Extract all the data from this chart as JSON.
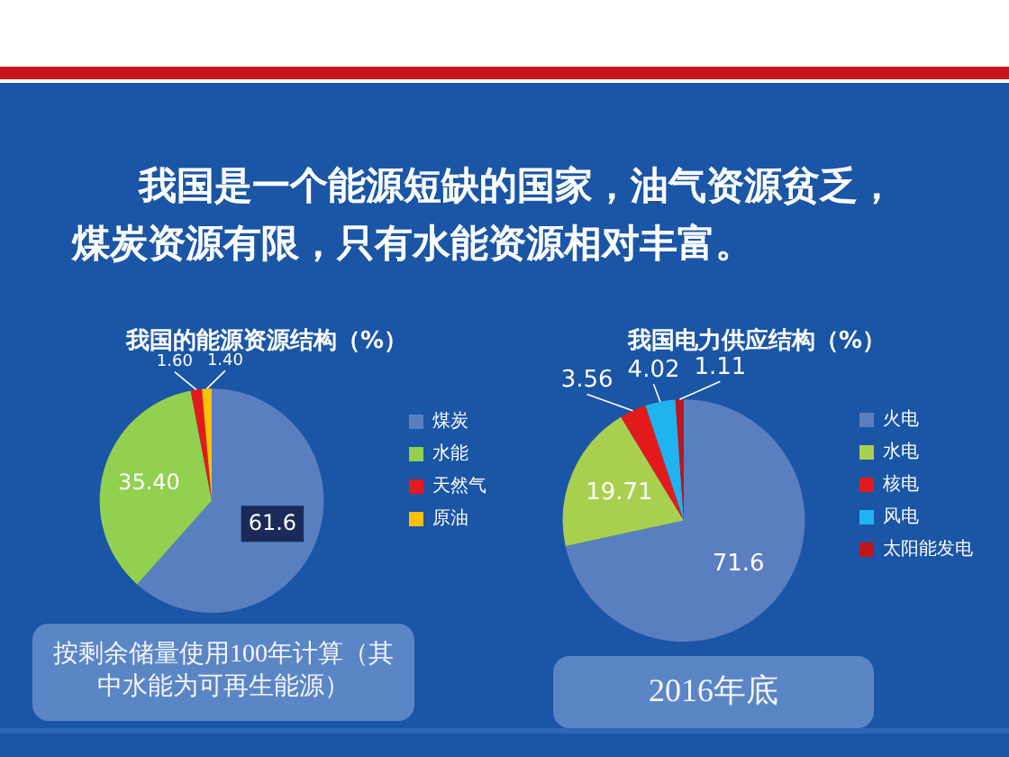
{
  "chart_data": [
    {
      "type": "pie",
      "title": "我国的能源资源结构（%）",
      "categories": [
        "煤炭",
        "水能",
        "天然气",
        "原油"
      ],
      "values": [
        61.6,
        35.4,
        1.6,
        1.4
      ],
      "value_labels": [
        "61.6",
        "35.40",
        "1.60",
        "1.40"
      ],
      "colors": [
        "#5a7fc0",
        "#92d050",
        "#e31a1c",
        "#ffc000"
      ],
      "legend": "right",
      "annotations": [
        "我国是一个能源短缺的国家，油气资源贫乏，",
        "煤炭资源有限，只有水能资源相对丰富。",
        "按剩余储量使用100年计算（其中水能为可再生能源）"
      ]
    },
    {
      "type": "pie",
      "title": "我国电力供应结构（%）",
      "categories": [
        "火电",
        "水电",
        "核电",
        "风电",
        "太阳能发电"
      ],
      "values": [
        71.6,
        19.71,
        3.56,
        4.02,
        1.11
      ],
      "value_labels": [
        "71.6",
        "19.71",
        "3.56",
        "4.02",
        "1.11"
      ],
      "colors": [
        "#5a7fc0",
        "#a8d04e",
        "#e31a1c",
        "#1fb4f0",
        "#c0151b"
      ],
      "legend": "right",
      "annotations": [
        "2016年底"
      ]
    }
  ]
}
